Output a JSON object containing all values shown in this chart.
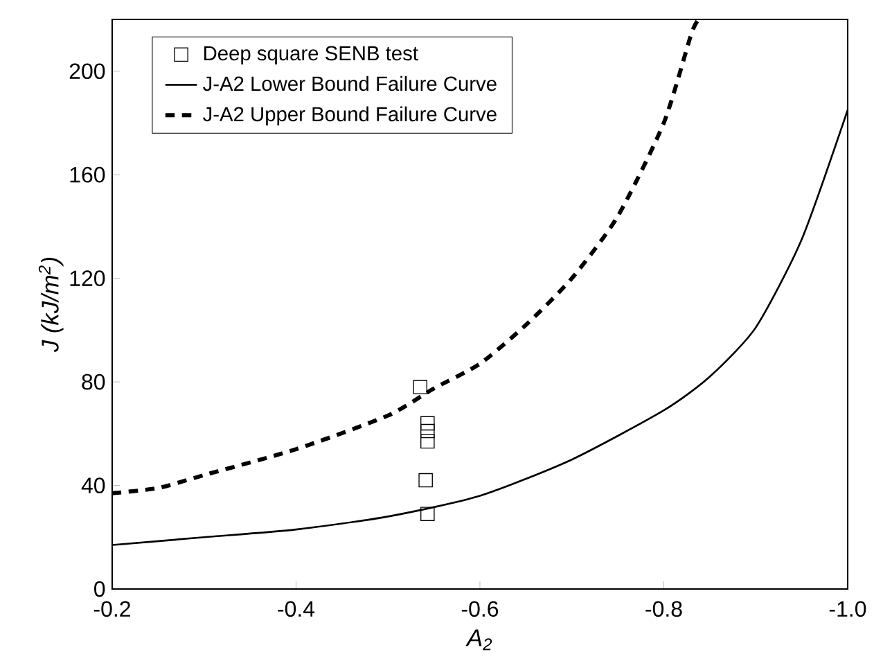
{
  "chart_data": {
    "type": "line",
    "xlabel": "A$_{2}$",
    "ylabel": "J (kJ/m$^{2}$)",
    "xlim": [
      -0.2,
      -1.0
    ],
    "ylim": [
      0,
      220
    ],
    "xticks": [
      -0.2,
      -0.4,
      -0.6,
      -0.8,
      {
        "value": -1.0,
        "label": "-1.0"
      }
    ],
    "yticks": [
      0,
      40,
      80,
      120,
      160,
      200
    ],
    "legend": "top left",
    "grid": false,
    "series": [
      {
        "name": "Deep square SENB test",
        "type": "scatter",
        "marker": "square",
        "color": "#000000",
        "x": [
          -0.535,
          -0.543,
          -0.543,
          -0.543,
          -0.541,
          -0.543
        ],
        "values": [
          78,
          64,
          61,
          57,
          42,
          29
        ]
      },
      {
        "name": "J-A2 Lower Bound Failure Curve",
        "line_style": "solid",
        "color": "#000000",
        "x": [
          -0.2,
          -0.3,
          -0.4,
          -0.5,
          -0.6,
          -0.7,
          -0.8,
          -0.85,
          -0.9,
          -0.95,
          -1.0
        ],
        "values": [
          17,
          20,
          23,
          28,
          36,
          50,
          69,
          82,
          101,
          135,
          185
        ]
      },
      {
        "name": "J-A2 Upper Bound Failure Curve",
        "line_style": "dashed",
        "color": "#000000",
        "x": [
          -0.2,
          -0.25,
          -0.3,
          -0.4,
          -0.5,
          -0.55,
          -0.6,
          -0.65,
          -0.7,
          -0.75,
          -0.8,
          -0.83,
          -0.838
        ],
        "values": [
          37,
          39,
          44,
          54,
          67,
          77.5,
          87,
          102,
          120,
          144,
          180,
          214.5,
          220
        ]
      }
    ]
  }
}
